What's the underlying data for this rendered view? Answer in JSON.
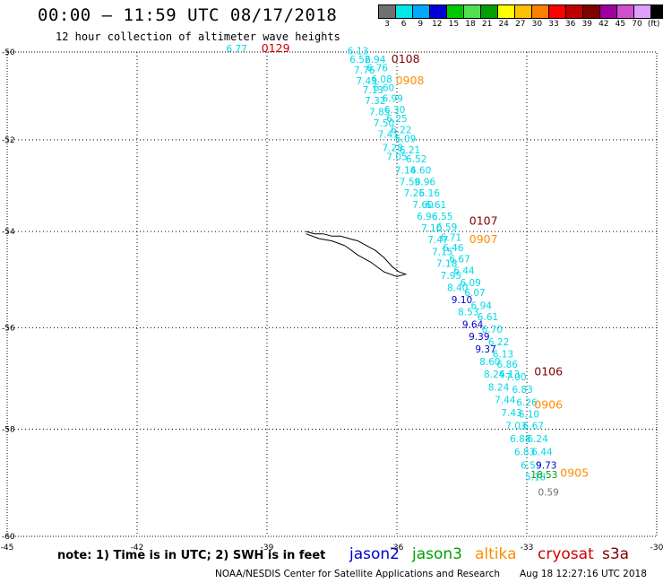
{
  "title": "00:00 – 11:59 UTC 08/17/2018",
  "subtitle": "12 hour collection of altimeter wave heights",
  "colorbar": {
    "colors": [
      "#707070",
      "#00e8e8",
      "#00a8ff",
      "#0000d8",
      "#00c800",
      "#50e050",
      "#00a000",
      "#ffff00",
      "#ffc000",
      "#ff8000",
      "#ff0000",
      "#c00000",
      "#800000",
      "#a000a0",
      "#d050d0",
      "#e0a0ff",
      "#000000"
    ],
    "labels": [
      "3",
      "6",
      "9",
      "12",
      "15",
      "18",
      "21",
      "24",
      "27",
      "30",
      "33",
      "36",
      "39",
      "42",
      "45",
      "70",
      "(ft)"
    ]
  },
  "axis": {
    "x_ticks": [
      "-45",
      "-42",
      "-39",
      "-36",
      "-33",
      "-30"
    ],
    "y_ticks": [
      "-50",
      "-52",
      "-54",
      "-56",
      "-58",
      "-60"
    ]
  },
  "note": "note: 1) Time is in UTC; 2) SWH is in feet",
  "satellites": [
    {
      "name": "jason2",
      "color": "#0000d0"
    },
    {
      "name": "jason3",
      "color": "#00a000"
    },
    {
      "name": "altika",
      "color": "#ff8c00"
    },
    {
      "name": "cryosat",
      "color": "#d00000"
    },
    {
      "name": "s3a",
      "color": "#800000"
    }
  ],
  "footer": "NOAA/NESDIS Center for Satellite Applications and Research",
  "footer_time": "Aug 18 12:27:16 UTC 2018",
  "pass_labels": [
    {
      "text": "0129",
      "lon": -38.8,
      "lat": -50.0,
      "color": "#d00000"
    },
    {
      "text": "0108",
      "lon": -35.8,
      "lat": -50.25,
      "color": "#800000"
    },
    {
      "text": "0908",
      "lon": -35.7,
      "lat": -50.75,
      "color": "#ff8c00"
    },
    {
      "text": "0107",
      "lon": -34.0,
      "lat": -53.85,
      "color": "#800000"
    },
    {
      "text": "0907",
      "lon": -34.0,
      "lat": -54.25,
      "color": "#ff8c00"
    },
    {
      "text": "0106",
      "lon": -32.5,
      "lat": -56.95,
      "color": "#800000"
    },
    {
      "text": "0906",
      "lon": -32.5,
      "lat": -57.6,
      "color": "#ff8c00"
    },
    {
      "text": "0905",
      "lon": -31.9,
      "lat": -58.9,
      "color": "#ff8c00"
    }
  ],
  "observations": [
    {
      "v": "6.77",
      "lon": -39.7,
      "lat": -50.0,
      "c": "#00d8e8"
    },
    {
      "v": "6.13",
      "lon": -36.9,
      "lat": -50.05,
      "c": "#00d8e8"
    },
    {
      "v": "6.52",
      "lon": -36.85,
      "lat": -50.25,
      "c": "#00d8e8"
    },
    {
      "v": "6.94",
      "lon": -36.5,
      "lat": -50.25,
      "c": "#00d8e8"
    },
    {
      "v": "7.76",
      "lon": -36.75,
      "lat": -50.5,
      "c": "#00d8e8"
    },
    {
      "v": "6.76",
      "lon": -36.45,
      "lat": -50.45,
      "c": "#00d8e8"
    },
    {
      "v": "7.43",
      "lon": -36.7,
      "lat": -50.75,
      "c": "#00d8e8"
    },
    {
      "v": "6.08",
      "lon": -36.35,
      "lat": -50.7,
      "c": "#00d8e8"
    },
    {
      "v": "7.13",
      "lon": -36.55,
      "lat": -50.95,
      "c": "#00d8e8"
    },
    {
      "v": "6.60",
      "lon": -36.3,
      "lat": -50.9,
      "c": "#00d8e8"
    },
    {
      "v": "7.32",
      "lon": -36.5,
      "lat": -51.2,
      "c": "#00d8e8"
    },
    {
      "v": "6.99",
      "lon": -36.1,
      "lat": -51.15,
      "c": "#00d8e8"
    },
    {
      "v": "7.85",
      "lon": -36.4,
      "lat": -51.45,
      "c": "#00d8e8"
    },
    {
      "v": "6.30",
      "lon": -36.05,
      "lat": -51.4,
      "c": "#00d8e8"
    },
    {
      "v": "7.50",
      "lon": -36.3,
      "lat": -51.7,
      "c": "#00d8e8"
    },
    {
      "v": "6.25",
      "lon": -36.0,
      "lat": -51.6,
      "c": "#00d8e8"
    },
    {
      "v": "7.41",
      "lon": -36.2,
      "lat": -51.95,
      "c": "#00d8e8"
    },
    {
      "v": "6.22",
      "lon": -35.9,
      "lat": -51.85,
      "c": "#00d8e8"
    },
    {
      "v": "7.28",
      "lon": -36.1,
      "lat": -52.25,
      "c": "#00d8e8"
    },
    {
      "v": "6.09",
      "lon": -35.8,
      "lat": -52.05,
      "c": "#00d8e8"
    },
    {
      "v": "7.05",
      "lon": -36.0,
      "lat": -52.45,
      "c": "#00d8e8"
    },
    {
      "v": "6.21",
      "lon": -35.7,
      "lat": -52.3,
      "c": "#00d8e8"
    },
    {
      "v": "6.52",
      "lon": -35.55,
      "lat": -52.5,
      "c": "#00d8e8"
    },
    {
      "v": "7.14",
      "lon": -35.8,
      "lat": -52.75,
      "c": "#00d8e8"
    },
    {
      "v": "6.60",
      "lon": -35.45,
      "lat": -52.75,
      "c": "#00d8e8"
    },
    {
      "v": "7.59",
      "lon": -35.7,
      "lat": -53.0,
      "c": "#00d8e8"
    },
    {
      "v": "6.96",
      "lon": -35.35,
      "lat": -53.0,
      "c": "#00d8e8"
    },
    {
      "v": "7.25",
      "lon": -35.6,
      "lat": -53.25,
      "c": "#00d8e8"
    },
    {
      "v": "6.16",
      "lon": -35.25,
      "lat": -53.25,
      "c": "#00d8e8"
    },
    {
      "v": "7.60",
      "lon": -35.4,
      "lat": -53.5,
      "c": "#00d8e8"
    },
    {
      "v": "6.61",
      "lon": -35.1,
      "lat": -53.5,
      "c": "#00d8e8"
    },
    {
      "v": "6.96",
      "lon": -35.3,
      "lat": -53.75,
      "c": "#00d8e8"
    },
    {
      "v": "6.55",
      "lon": -34.95,
      "lat": -53.75,
      "c": "#00d8e8"
    },
    {
      "v": "7.10",
      "lon": -35.2,
      "lat": -54.0,
      "c": "#00d8e8"
    },
    {
      "v": "6.59",
      "lon": -34.85,
      "lat": -53.98,
      "c": "#00d8e8"
    },
    {
      "v": "7.47",
      "lon": -35.05,
      "lat": -54.25,
      "c": "#00d8e8"
    },
    {
      "v": "6.71",
      "lon": -34.75,
      "lat": -54.2,
      "c": "#00d8e8"
    },
    {
      "v": "7.15",
      "lon": -34.95,
      "lat": -54.5,
      "c": "#00d8e8"
    },
    {
      "v": "6.46",
      "lon": -34.7,
      "lat": -54.42,
      "c": "#00d8e8"
    },
    {
      "v": "7.18",
      "lon": -34.85,
      "lat": -54.75,
      "c": "#00d8e8"
    },
    {
      "v": "6.67",
      "lon": -34.55,
      "lat": -54.65,
      "c": "#00d8e8"
    },
    {
      "v": "7.95",
      "lon": -34.75,
      "lat": -55.0,
      "c": "#00d8e8"
    },
    {
      "v": "6.44",
      "lon": -34.45,
      "lat": -54.9,
      "c": "#00d8e8"
    },
    {
      "v": "8.40",
      "lon": -34.6,
      "lat": -55.25,
      "c": "#00d8e8"
    },
    {
      "v": "6.09",
      "lon": -34.3,
      "lat": -55.15,
      "c": "#00d8e8"
    },
    {
      "v": "9.10",
      "lon": -34.5,
      "lat": -55.5,
      "c": "#0000d0"
    },
    {
      "v": "6.07",
      "lon": -34.2,
      "lat": -55.35,
      "c": "#00d8e8"
    },
    {
      "v": "8.53",
      "lon": -34.35,
      "lat": -55.75,
      "c": "#00d8e8"
    },
    {
      "v": "6.94",
      "lon": -34.05,
      "lat": -55.62,
      "c": "#00d8e8"
    },
    {
      "v": "9.64",
      "lon": -34.25,
      "lat": -56.0,
      "c": "#0000d0"
    },
    {
      "v": "6.61",
      "lon": -33.9,
      "lat": -55.85,
      "c": "#00d8e8"
    },
    {
      "v": "9.39",
      "lon": -34.1,
      "lat": -56.25,
      "c": "#0000d0"
    },
    {
      "v": "6.70",
      "lon": -33.8,
      "lat": -56.1,
      "c": "#00d8e8"
    },
    {
      "v": "9.37",
      "lon": -33.95,
      "lat": -56.5,
      "c": "#0000d0"
    },
    {
      "v": "6.22",
      "lon": -33.65,
      "lat": -56.35,
      "c": "#00d8e8"
    },
    {
      "v": "8.60",
      "lon": -33.85,
      "lat": -56.75,
      "c": "#00d8e8"
    },
    {
      "v": "6.13",
      "lon": -33.55,
      "lat": -56.6,
      "c": "#00d8e8"
    },
    {
      "v": "8.24",
      "lon": -33.75,
      "lat": -57.0,
      "c": "#00d8e8"
    },
    {
      "v": "6.86",
      "lon": -33.45,
      "lat": -56.8,
      "c": "#00d8e8"
    },
    {
      "v": "8.24",
      "lon": -33.65,
      "lat": -57.25,
      "c": "#00d8e8"
    },
    {
      "v": "6.13",
      "lon": -33.4,
      "lat": -57.0,
      "c": "#00d8e8"
    },
    {
      "v": "7.44",
      "lon": -33.5,
      "lat": -57.5,
      "c": "#00d8e8"
    },
    {
      "v": "7.00",
      "lon": -33.25,
      "lat": -57.05,
      "c": "#00d8e8"
    },
    {
      "v": "7.43",
      "lon": -33.35,
      "lat": -57.75,
      "c": "#00d8e8"
    },
    {
      "v": "6.83",
      "lon": -33.1,
      "lat": -57.3,
      "c": "#00d8e8"
    },
    {
      "v": "7.03",
      "lon": -33.25,
      "lat": -58.0,
      "c": "#00d8e8"
    },
    {
      "v": "6.26",
      "lon": -33.0,
      "lat": -57.55,
      "c": "#00d8e8"
    },
    {
      "v": "6.88",
      "lon": -33.15,
      "lat": -58.25,
      "c": "#00d8e8"
    },
    {
      "v": "6.10",
      "lon": -32.95,
      "lat": -57.78,
      "c": "#00d8e8"
    },
    {
      "v": "6.83",
      "lon": -33.05,
      "lat": -58.5,
      "c": "#00d8e8"
    },
    {
      "v": "6.67",
      "lon": -32.85,
      "lat": -58.0,
      "c": "#00d8e8"
    },
    {
      "v": "6.59",
      "lon": -32.9,
      "lat": -58.75,
      "c": "#00d8e8"
    },
    {
      "v": "6.24",
      "lon": -32.75,
      "lat": -58.25,
      "c": "#00d8e8"
    },
    {
      "v": "5.18",
      "lon": -32.8,
      "lat": -58.97,
      "c": "#00d8e8"
    },
    {
      "v": "6.44",
      "lon": -32.65,
      "lat": -58.5,
      "c": "#00d8e8"
    },
    {
      "v": "9.73",
      "lon": -32.55,
      "lat": -58.75,
      "c": "#0000d0"
    },
    {
      "v": "18.53",
      "lon": -32.6,
      "lat": -58.93,
      "c": "#00a000"
    },
    {
      "v": "0.59",
      "lon": -32.5,
      "lat": -59.25,
      "c": "#707070"
    }
  ],
  "coastline": [
    [
      -38.1,
      -54.0
    ],
    [
      -37.9,
      -54.05
    ],
    [
      -37.7,
      -54.05
    ],
    [
      -37.5,
      -54.1
    ],
    [
      -37.3,
      -54.1
    ],
    [
      -37.1,
      -54.15
    ],
    [
      -36.9,
      -54.2
    ],
    [
      -36.7,
      -54.3
    ],
    [
      -36.5,
      -54.4
    ],
    [
      -36.3,
      -54.55
    ],
    [
      -36.1,
      -54.75
    ],
    [
      -35.95,
      -54.85
    ],
    [
      -35.8,
      -54.9
    ],
    [
      -36.0,
      -54.95
    ],
    [
      -36.3,
      -54.85
    ],
    [
      -36.6,
      -54.65
    ],
    [
      -36.9,
      -54.5
    ],
    [
      -37.2,
      -54.3
    ],
    [
      -37.5,
      -54.2
    ],
    [
      -37.8,
      -54.15
    ],
    [
      -38.1,
      -54.05
    ]
  ]
}
